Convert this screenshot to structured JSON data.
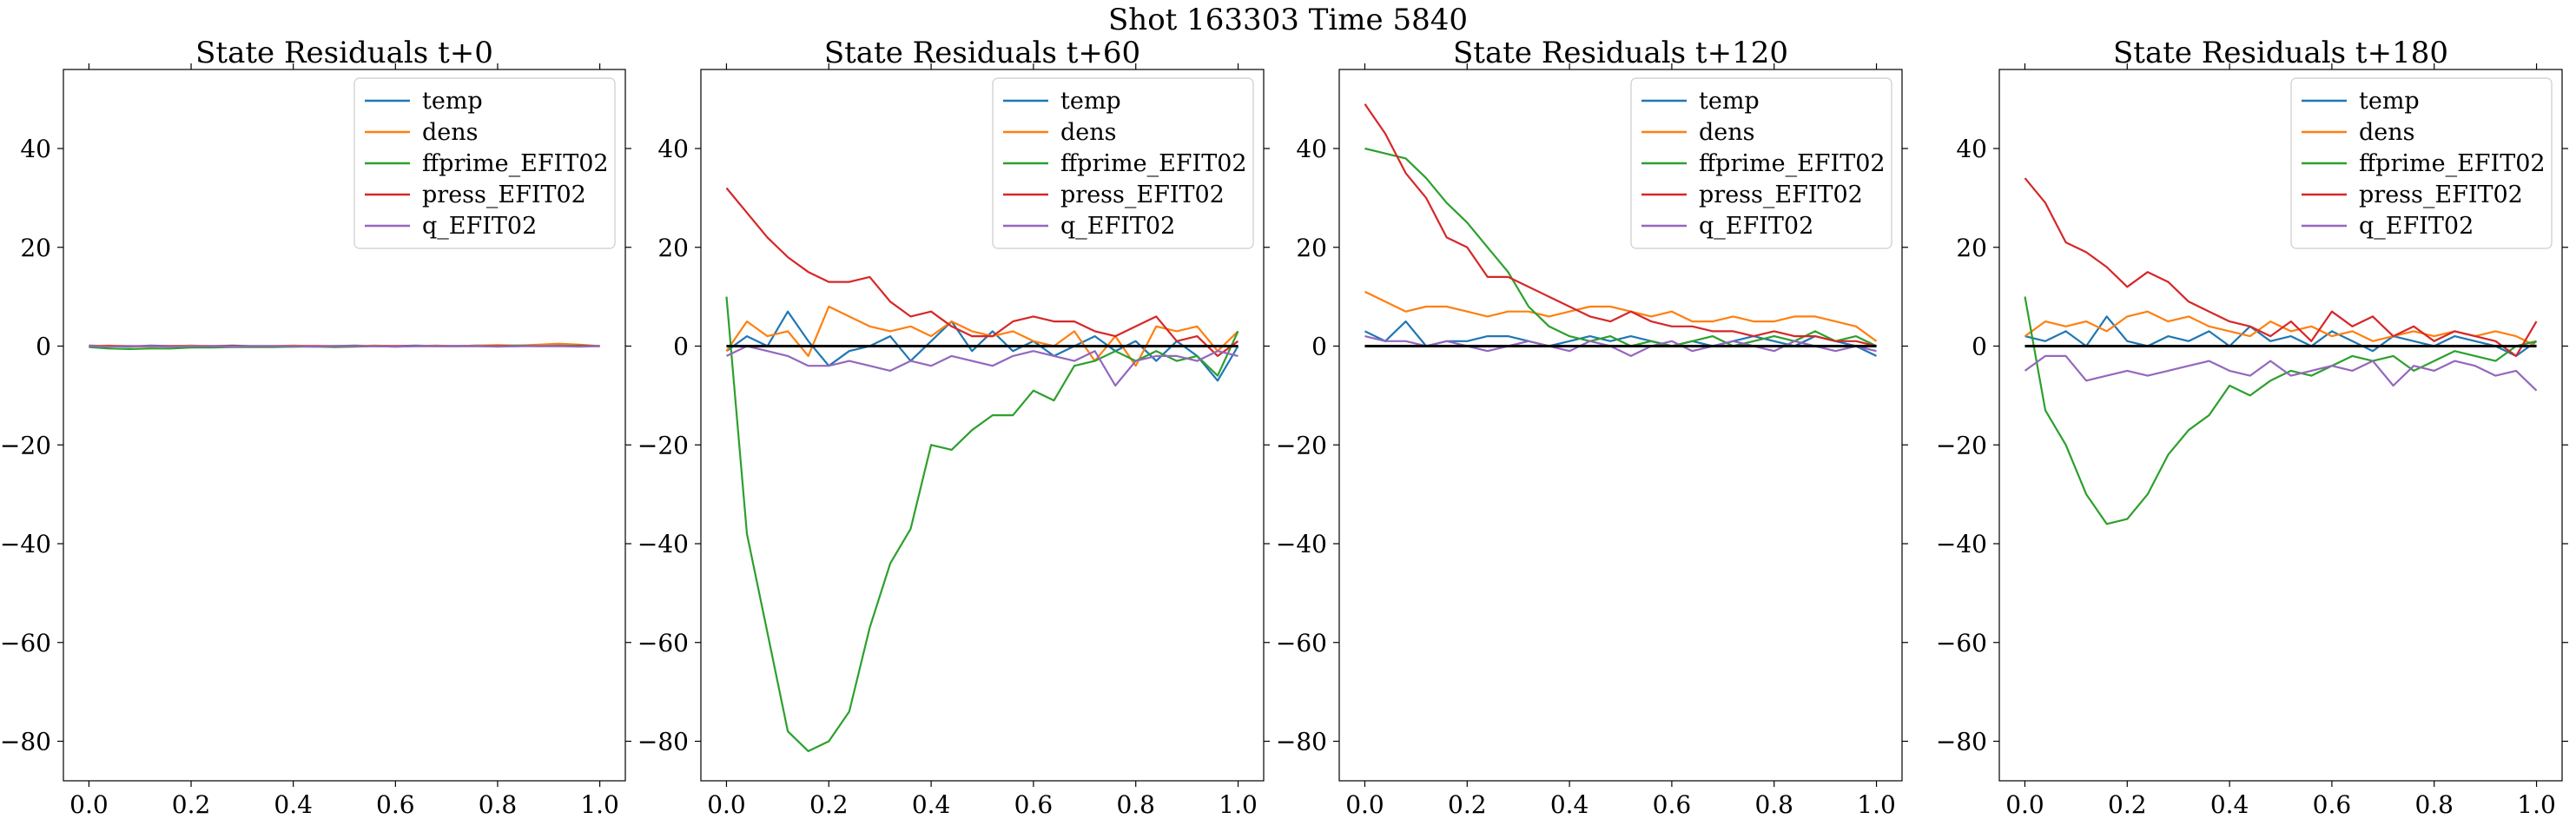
{
  "figure": {
    "suptitle": "Shot 163303   Time 5840"
  },
  "chart_data": [
    {
      "type": "line",
      "title": "State Residuals t+0",
      "xlim": [
        -0.05,
        1.05
      ],
      "ylim": [
        -88,
        56
      ],
      "xticks": [
        0.0,
        0.2,
        0.4,
        0.6,
        0.8,
        1.0
      ],
      "xtick_labels": [
        "0.0",
        "0.2",
        "0.4",
        "0.6",
        "0.8",
        "1.0"
      ],
      "yticks": [
        -80,
        -60,
        -40,
        -20,
        0,
        20,
        40
      ],
      "ytick_labels": [
        "−80",
        "−60",
        "−40",
        "−20",
        "0",
        "20",
        "40"
      ],
      "legend_position": "top-right",
      "zero_line": false,
      "x": [
        0.0,
        0.04,
        0.08,
        0.12,
        0.16,
        0.2,
        0.24,
        0.28,
        0.32,
        0.36,
        0.4,
        0.44,
        0.48,
        0.52,
        0.56,
        0.6,
        0.64,
        0.68,
        0.72,
        0.76,
        0.8,
        0.84,
        0.88,
        0.92,
        0.96,
        1.0
      ],
      "series": [
        {
          "name": "temp",
          "color": "#1f77b4",
          "values": [
            0.1,
            0.0,
            -0.1,
            0.1,
            0.0,
            0.0,
            0.0,
            0.1,
            0.0,
            0.0,
            -0.1,
            0.0,
            0.0,
            0.1,
            0.0,
            0.0,
            0.1,
            0.0,
            0.0,
            0.1,
            0.0,
            0.0,
            0.1,
            0.2,
            0.1,
            0.0
          ]
        },
        {
          "name": "dens",
          "color": "#ff7f0e",
          "values": [
            0.0,
            0.1,
            0.0,
            -0.1,
            0.0,
            0.1,
            0.0,
            0.0,
            -0.1,
            0.0,
            0.1,
            0.0,
            0.0,
            0.0,
            0.1,
            0.0,
            0.0,
            0.1,
            0.0,
            0.1,
            0.2,
            0.1,
            0.3,
            0.5,
            0.3,
            0.0
          ]
        },
        {
          "name": "ffprime_EFIT02",
          "color": "#2ca02c",
          "values": [
            -0.2,
            -0.5,
            -0.6,
            -0.5,
            -0.5,
            -0.3,
            -0.3,
            -0.2,
            -0.2,
            -0.2,
            -0.1,
            -0.1,
            -0.2,
            -0.1,
            0.0,
            -0.1,
            0.0,
            0.0,
            0.0,
            0.0,
            0.0,
            0.1,
            0.0,
            0.0,
            0.1,
            0.0
          ]
        },
        {
          "name": "press_EFIT02",
          "color": "#d62728",
          "values": [
            0.0,
            0.0,
            0.0,
            0.0,
            0.0,
            0.0,
            0.0,
            0.0,
            0.0,
            0.0,
            0.0,
            0.0,
            0.0,
            0.0,
            0.0,
            0.0,
            0.0,
            0.0,
            0.0,
            0.0,
            0.0,
            0.0,
            0.0,
            0.0,
            0.0,
            0.0
          ]
        },
        {
          "name": "q_EFIT02",
          "color": "#9467bd",
          "values": [
            0.0,
            -0.1,
            0.0,
            0.0,
            -0.1,
            0.0,
            0.0,
            -0.1,
            0.0,
            0.0,
            0.0,
            -0.1,
            0.0,
            0.0,
            0.0,
            -0.1,
            0.0,
            0.0,
            0.0,
            0.0,
            -0.1,
            0.0,
            0.0,
            0.0,
            -0.1,
            0.0
          ]
        }
      ]
    },
    {
      "type": "line",
      "title": "State Residuals t+60",
      "xlim": [
        -0.05,
        1.05
      ],
      "ylim": [
        -88,
        56
      ],
      "xticks": [
        0.0,
        0.2,
        0.4,
        0.6,
        0.8,
        1.0
      ],
      "xtick_labels": [
        "0.0",
        "0.2",
        "0.4",
        "0.6",
        "0.8",
        "1.0"
      ],
      "yticks": [
        -80,
        -60,
        -40,
        -20,
        0,
        20,
        40
      ],
      "ytick_labels": [
        "−80",
        "−60",
        "−40",
        "−20",
        "0",
        "20",
        "40"
      ],
      "legend_position": "top-right",
      "zero_line": true,
      "x": [
        0.0,
        0.04,
        0.08,
        0.12,
        0.16,
        0.2,
        0.24,
        0.28,
        0.32,
        0.36,
        0.4,
        0.44,
        0.48,
        0.52,
        0.56,
        0.6,
        0.64,
        0.68,
        0.72,
        0.76,
        0.8,
        0.84,
        0.88,
        0.92,
        0.96,
        1.0
      ],
      "series": [
        {
          "name": "temp",
          "color": "#1f77b4",
          "values": [
            -1,
            2,
            0,
            7,
            1,
            -4,
            -1,
            0,
            2,
            -3,
            1,
            5,
            -1,
            3,
            -1,
            1,
            -2,
            0,
            2,
            -1,
            1,
            -3,
            1,
            -2,
            -7,
            0
          ]
        },
        {
          "name": "dens",
          "color": "#ff7f0e",
          "values": [
            -1,
            5,
            2,
            3,
            -2,
            8,
            6,
            4,
            3,
            4,
            2,
            5,
            3,
            2,
            3,
            1,
            0,
            3,
            -3,
            2,
            -4,
            4,
            3,
            4,
            -1,
            3
          ]
        },
        {
          "name": "ffprime_EFIT02",
          "color": "#2ca02c",
          "values": [
            10,
            -38,
            -58,
            -78,
            -82,
            -80,
            -74,
            -57,
            -44,
            -37,
            -20,
            -21,
            -17,
            -14,
            -14,
            -9,
            -11,
            -4,
            -3,
            -1,
            -3,
            -1,
            -3,
            -2,
            -6,
            3
          ]
        },
        {
          "name": "press_EFIT02",
          "color": "#d62728",
          "values": [
            32,
            27,
            22,
            18,
            15,
            13,
            13,
            14,
            9,
            6,
            7,
            4,
            2,
            2,
            5,
            6,
            5,
            5,
            3,
            2,
            4,
            6,
            1,
            2,
            -2,
            1
          ]
        },
        {
          "name": "q_EFIT02",
          "color": "#9467bd",
          "values": [
            -2,
            0,
            -1,
            -2,
            -4,
            -4,
            -3,
            -4,
            -5,
            -3,
            -4,
            -2,
            -3,
            -4,
            -2,
            -1,
            -2,
            -3,
            -1,
            -8,
            -3,
            -2,
            -2,
            -3,
            -1,
            -2
          ]
        }
      ]
    },
    {
      "type": "line",
      "title": "State Residuals t+120",
      "xlim": [
        -0.05,
        1.05
      ],
      "ylim": [
        -88,
        56
      ],
      "xticks": [
        0.0,
        0.2,
        0.4,
        0.6,
        0.8,
        1.0
      ],
      "xtick_labels": [
        "0.0",
        "0.2",
        "0.4",
        "0.6",
        "0.8",
        "1.0"
      ],
      "yticks": [
        -80,
        -60,
        -40,
        -20,
        0,
        20,
        40
      ],
      "ytick_labels": [
        "−80",
        "−60",
        "−40",
        "−20",
        "0",
        "20",
        "40"
      ],
      "legend_position": "top-right",
      "zero_line": true,
      "x": [
        0.0,
        0.04,
        0.08,
        0.12,
        0.16,
        0.2,
        0.24,
        0.28,
        0.32,
        0.36,
        0.4,
        0.44,
        0.48,
        0.52,
        0.56,
        0.6,
        0.64,
        0.68,
        0.72,
        0.76,
        0.8,
        0.84,
        0.88,
        0.92,
        0.96,
        1.0
      ],
      "series": [
        {
          "name": "temp",
          "color": "#1f77b4",
          "values": [
            3,
            1,
            5,
            0,
            1,
            1,
            2,
            2,
            1,
            0,
            1,
            2,
            1,
            2,
            1,
            0,
            1,
            0,
            1,
            2,
            1,
            0,
            2,
            1,
            0,
            -2
          ]
        },
        {
          "name": "dens",
          "color": "#ff7f0e",
          "values": [
            11,
            9,
            7,
            8,
            8,
            7,
            6,
            7,
            7,
            6,
            7,
            8,
            8,
            7,
            6,
            7,
            5,
            5,
            6,
            5,
            5,
            6,
            6,
            5,
            4,
            1
          ]
        },
        {
          "name": "ffprime_EFIT02",
          "color": "#2ca02c",
          "values": [
            40,
            39,
            38,
            34,
            29,
            25,
            20,
            15,
            8,
            4,
            2,
            1,
            2,
            0,
            1,
            0,
            1,
            2,
            0,
            1,
            2,
            1,
            3,
            1,
            2,
            0
          ]
        },
        {
          "name": "press_EFIT02",
          "color": "#d62728",
          "values": [
            49,
            43,
            35,
            30,
            22,
            20,
            14,
            14,
            12,
            10,
            8,
            6,
            5,
            7,
            5,
            4,
            4,
            3,
            3,
            2,
            3,
            2,
            2,
            1,
            1,
            0
          ]
        },
        {
          "name": "q_EFIT02",
          "color": "#9467bd",
          "values": [
            2,
            1,
            1,
            0,
            1,
            0,
            -1,
            0,
            1,
            0,
            -1,
            1,
            0,
            -2,
            0,
            1,
            -1,
            0,
            1,
            0,
            -1,
            1,
            0,
            -1,
            0,
            -1
          ]
        }
      ]
    },
    {
      "type": "line",
      "title": "State Residuals t+180",
      "xlim": [
        -0.05,
        1.05
      ],
      "ylim": [
        -88,
        56
      ],
      "xticks": [
        0.0,
        0.2,
        0.4,
        0.6,
        0.8,
        1.0
      ],
      "xtick_labels": [
        "0.0",
        "0.2",
        "0.4",
        "0.6",
        "0.8",
        "1.0"
      ],
      "yticks": [
        -80,
        -60,
        -40,
        -20,
        0,
        20,
        40
      ],
      "ytick_labels": [
        "−80",
        "−60",
        "−40",
        "−20",
        "0",
        "20",
        "40"
      ],
      "legend_position": "top-right",
      "zero_line": true,
      "x": [
        0.0,
        0.04,
        0.08,
        0.12,
        0.16,
        0.2,
        0.24,
        0.28,
        0.32,
        0.36,
        0.4,
        0.44,
        0.48,
        0.52,
        0.56,
        0.6,
        0.64,
        0.68,
        0.72,
        0.76,
        0.8,
        0.84,
        0.88,
        0.92,
        0.96,
        1.0
      ],
      "series": [
        {
          "name": "temp",
          "color": "#1f77b4",
          "values": [
            2,
            1,
            3,
            0,
            6,
            1,
            0,
            2,
            1,
            3,
            0,
            4,
            1,
            2,
            0,
            3,
            1,
            -1,
            2,
            1,
            0,
            2,
            1,
            0,
            -2,
            1
          ]
        },
        {
          "name": "dens",
          "color": "#ff7f0e",
          "values": [
            2,
            5,
            4,
            5,
            3,
            6,
            7,
            5,
            6,
            4,
            3,
            2,
            5,
            3,
            4,
            2,
            3,
            1,
            2,
            3,
            2,
            3,
            2,
            3,
            2,
            0
          ]
        },
        {
          "name": "ffprime_EFIT02",
          "color": "#2ca02c",
          "values": [
            10,
            -13,
            -20,
            -30,
            -36,
            -35,
            -30,
            -22,
            -17,
            -14,
            -8,
            -10,
            -7,
            -5,
            -6,
            -4,
            -2,
            -3,
            -2,
            -5,
            -3,
            -1,
            -2,
            -3,
            0,
            1
          ]
        },
        {
          "name": "press_EFIT02",
          "color": "#d62728",
          "values": [
            34,
            29,
            21,
            19,
            16,
            12,
            15,
            13,
            9,
            7,
            5,
            4,
            2,
            5,
            1,
            7,
            4,
            6,
            2,
            4,
            1,
            3,
            2,
            1,
            -2,
            5
          ]
        },
        {
          "name": "q_EFIT02",
          "color": "#9467bd",
          "values": [
            -5,
            -2,
            -2,
            -7,
            -6,
            -5,
            -6,
            -5,
            -4,
            -3,
            -5,
            -6,
            -3,
            -6,
            -5,
            -4,
            -5,
            -3,
            -8,
            -4,
            -5,
            -3,
            -4,
            -6,
            -5,
            -9
          ]
        }
      ]
    }
  ]
}
